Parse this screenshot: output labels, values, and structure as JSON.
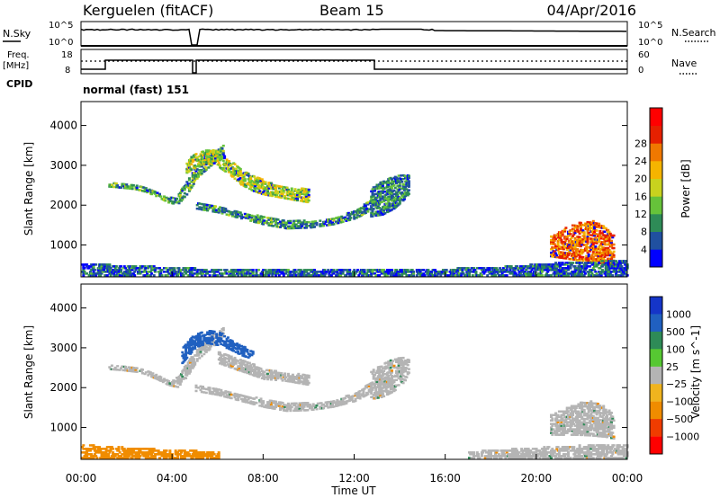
{
  "header": {
    "title": "Kerguelen (fitACF)",
    "beam": "Beam 15",
    "date": "04/Apr/2016"
  },
  "summary_panels": {
    "nsky_label": "N.Sky",
    "nsearch_label": "N.Search",
    "log_top_label": "10^5",
    "log_bottom_label": "10^0",
    "freq_label_1": "Freq.",
    "freq_label_2": "[MHz]",
    "freq_top": "18",
    "freq_bottom": "8",
    "nave_label": "Nave",
    "nave_top": "60",
    "nave_bottom": "0",
    "cpid_label": "CPID",
    "cpid_text": "normal (fast) 151"
  },
  "colors": {
    "power_scale": [
      "#0000ff",
      "#2050a0",
      "#2e8b57",
      "#66c23a",
      "#c8d21e",
      "#f5b400",
      "#f07800",
      "#e62000",
      "#ff0000"
    ],
    "velocity_scale": [
      "#1535c8",
      "#2060c0",
      "#2e8b57",
      "#56c832",
      "#b4b4b4",
      "#f0b41e",
      "#f08c00",
      "#f03c00",
      "#ff0000"
    ],
    "ground_scatter": "#b4b4b4"
  },
  "chart_data": [
    {
      "type": "heatmap",
      "name": "power",
      "ylabel": "Slant Range [km]",
      "yticks": [
        "1000",
        "2000",
        "3000",
        "4000"
      ],
      "ylim": [
        200,
        4600
      ],
      "xlim": [
        0,
        24
      ],
      "xticks": [
        "00:00",
        "04:00",
        "08:00",
        "12:00",
        "16:00",
        "20:00",
        "00:00"
      ],
      "colorbar": {
        "label": "Power [dB]",
        "ticks": [
          "4",
          "8",
          "12",
          "16",
          "20",
          "24",
          "28"
        ],
        "range": [
          0,
          30
        ]
      },
      "echo_bands": [
        {
          "t": [
            1.2,
            1.8,
            2.4,
            2.8,
            3.3,
            3.8,
            4.2,
            4.6,
            5.1,
            5.6,
            6.2
          ],
          "r0": [
            2450,
            2420,
            2380,
            2320,
            2200,
            2050,
            2000,
            2250,
            2700,
            2950,
            3250
          ],
          "r1": [
            2560,
            2530,
            2500,
            2450,
            2320,
            2180,
            2250,
            2600,
            3000,
            3250,
            3480
          ],
          "p": 10
        },
        {
          "t": [
            4.6,
            5.0,
            5.5,
            6.0,
            6.5,
            7.0,
            7.5,
            8.0,
            8.5,
            9.0,
            9.5,
            10.0
          ],
          "r0": [
            2800,
            2950,
            3050,
            2950,
            2750,
            2500,
            2350,
            2250,
            2200,
            2150,
            2100,
            2050
          ],
          "r1": [
            3100,
            3300,
            3400,
            3350,
            3150,
            2900,
            2750,
            2600,
            2500,
            2450,
            2400,
            2400
          ],
          "p": 14
        },
        {
          "t": [
            5.0,
            6.0,
            7.0,
            8.0,
            9.0,
            10.0,
            11.0,
            12.0,
            12.8
          ],
          "r0": [
            1900,
            1800,
            1650,
            1500,
            1400,
            1420,
            1500,
            1650,
            1900
          ],
          "r1": [
            2050,
            1950,
            1800,
            1700,
            1620,
            1600,
            1650,
            1850,
            2150
          ],
          "p": 9
        },
        {
          "t": [
            12.7,
            13.2,
            13.7,
            14.1,
            14.4
          ],
          "r0": [
            1700,
            1750,
            1900,
            2100,
            2300
          ],
          "r1": [
            2400,
            2600,
            2700,
            2750,
            2750
          ],
          "p": 8
        },
        {
          "t": [
            20.6,
            21.2,
            21.8,
            22.4,
            23.0,
            23.4
          ],
          "r0": [
            700,
            650,
            600,
            550,
            500,
            500
          ],
          "r1": [
            1200,
            1400,
            1550,
            1600,
            1450,
            1200
          ],
          "p": 22
        },
        {
          "t": [
            0,
            3,
            6,
            9,
            12,
            15,
            18,
            21,
            24
          ],
          "r0": [
            220,
            220,
            220,
            220,
            220,
            220,
            220,
            220,
            220
          ],
          "r1": [
            520,
            450,
            380,
            360,
            360,
            380,
            420,
            550,
            600
          ],
          "p": 6
        }
      ]
    },
    {
      "type": "heatmap",
      "name": "velocity",
      "ylabel": "Slant Range [km]",
      "yticks": [
        "1000",
        "2000",
        "3000",
        "4000"
      ],
      "ylim": [
        200,
        4600
      ],
      "xlim": [
        0,
        24
      ],
      "xlabel": "Time UT",
      "xticks": [
        "00:00",
        "04:00",
        "08:00",
        "12:00",
        "16:00",
        "20:00",
        "00:00"
      ],
      "colorbar": {
        "label": "Velocity [m s^-1]",
        "ticks": [
          "1000",
          "500",
          "100",
          "25",
          "−25",
          "−100",
          "−500",
          "−1000"
        ]
      },
      "echo_bands": [
        {
          "t": [
            1.2,
            1.8,
            2.4,
            2.8,
            3.3,
            3.8,
            4.2,
            4.6,
            5.1,
            5.6,
            6.2
          ],
          "r0": [
            2450,
            2420,
            2380,
            2320,
            2200,
            2050,
            2000,
            2250,
            2700,
            2950,
            3250
          ],
          "r1": [
            2560,
            2530,
            2500,
            2450,
            2320,
            2180,
            2250,
            2600,
            3000,
            3250,
            3480
          ],
          "v": "ground"
        },
        {
          "t": [
            4.4,
            5.0,
            5.5,
            6.0,
            6.5,
            7.0,
            7.5
          ],
          "r0": [
            2600,
            3000,
            3100,
            3050,
            2950,
            2800,
            2700
          ],
          "r1": [
            3000,
            3350,
            3450,
            3400,
            3200,
            3050,
            2900
          ],
          "v": 500
        },
        {
          "t": [
            6.0,
            7.0,
            8.0,
            9.0,
            10.0
          ],
          "r0": [
            2600,
            2400,
            2200,
            2150,
            2050
          ],
          "r1": [
            2900,
            2700,
            2450,
            2350,
            2300
          ],
          "v": "ground"
        },
        {
          "t": [
            5.0,
            6.0,
            7.0,
            8.0,
            9.0,
            10.0,
            11.0,
            12.0,
            12.8
          ],
          "r0": [
            1900,
            1800,
            1650,
            1500,
            1400,
            1420,
            1500,
            1650,
            1900
          ],
          "r1": [
            2050,
            1950,
            1800,
            1700,
            1620,
            1600,
            1650,
            1850,
            2150
          ],
          "v": "ground"
        },
        {
          "t": [
            12.7,
            13.2,
            13.7,
            14.1,
            14.4
          ],
          "r0": [
            1700,
            1750,
            1900,
            2100,
            2300
          ],
          "r1": [
            2400,
            2600,
            2700,
            2750,
            2750
          ],
          "v": "ground"
        },
        {
          "t": [
            20.6,
            21.2,
            21.8,
            22.4,
            23.0,
            23.4
          ],
          "r0": [
            800,
            800,
            800,
            780,
            750,
            700
          ],
          "r1": [
            1300,
            1450,
            1600,
            1650,
            1500,
            1300
          ],
          "v": "ground"
        },
        {
          "t": [
            0,
            2,
            4,
            6
          ],
          "r0": [
            220,
            220,
            220,
            220
          ],
          "r1": [
            560,
            480,
            420,
            380
          ],
          "v": -100
        },
        {
          "t": [
            17,
            19,
            21,
            23,
            24
          ],
          "r0": [
            220,
            220,
            220,
            220,
            220
          ],
          "r1": [
            380,
            450,
            520,
            560,
            580
          ],
          "v": "ground"
        }
      ]
    }
  ]
}
